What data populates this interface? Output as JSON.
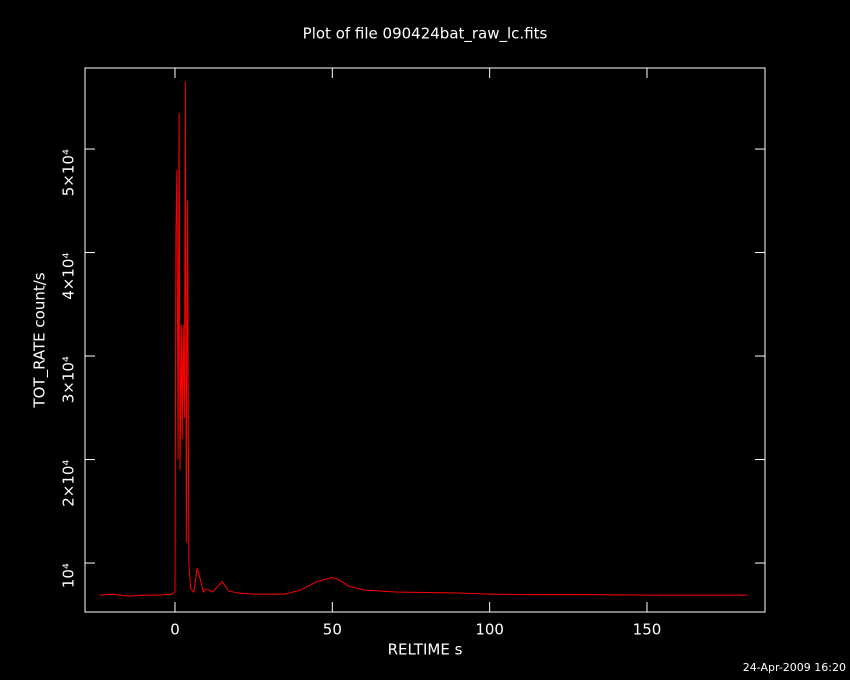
{
  "chart_data": {
    "type": "line",
    "title": "Plot of file 090424bat_raw_lc.fits",
    "x_label": "RELTIME  s",
    "y_label": "TOT_RATE  count/s",
    "timestamp": "24-Apr-2009 16:20",
    "xlim": [
      -28.6,
      187.5
    ],
    "ylim": [
      5270,
      57830
    ],
    "xticks": [
      0,
      50,
      100,
      150
    ],
    "yticks": [
      {
        "value": 10000,
        "label": "10⁴"
      },
      {
        "value": 20000,
        "label": "2×10⁴"
      },
      {
        "value": 30000,
        "label": "3×10⁴"
      },
      {
        "value": 40000,
        "label": "4×10⁴"
      },
      {
        "value": 50000,
        "label": "5×10⁴"
      }
    ],
    "x": [
      -24,
      -20,
      -15,
      -10,
      -5,
      -1,
      0,
      0.3,
      0.6,
      1,
      1.3,
      1.6,
      2,
      2.3,
      2.6,
      3,
      3.3,
      3.6,
      4,
      4.4,
      5,
      6,
      7,
      8,
      9,
      10,
      12,
      15,
      17,
      20,
      25,
      30,
      35,
      40,
      45,
      50,
      52,
      55,
      60,
      70,
      80,
      90,
      100,
      110,
      130,
      150,
      170,
      182
    ],
    "series": [
      {
        "color": "#ff0000",
        "values": [
          6900,
          7000,
          6800,
          6900,
          6900,
          7000,
          7200,
          42000,
          48000,
          20000,
          53500,
          19000,
          33000,
          22000,
          33000,
          24000,
          56500,
          12000,
          45000,
          10000,
          7500,
          7200,
          9500,
          8500,
          7200,
          7500,
          7200,
          8200,
          7300,
          7100,
          7000,
          7000,
          7000,
          7400,
          8200,
          8600,
          8400,
          7800,
          7400,
          7200,
          7150,
          7100,
          7000,
          6950,
          6950,
          6900,
          6900,
          6900
        ]
      }
    ]
  }
}
